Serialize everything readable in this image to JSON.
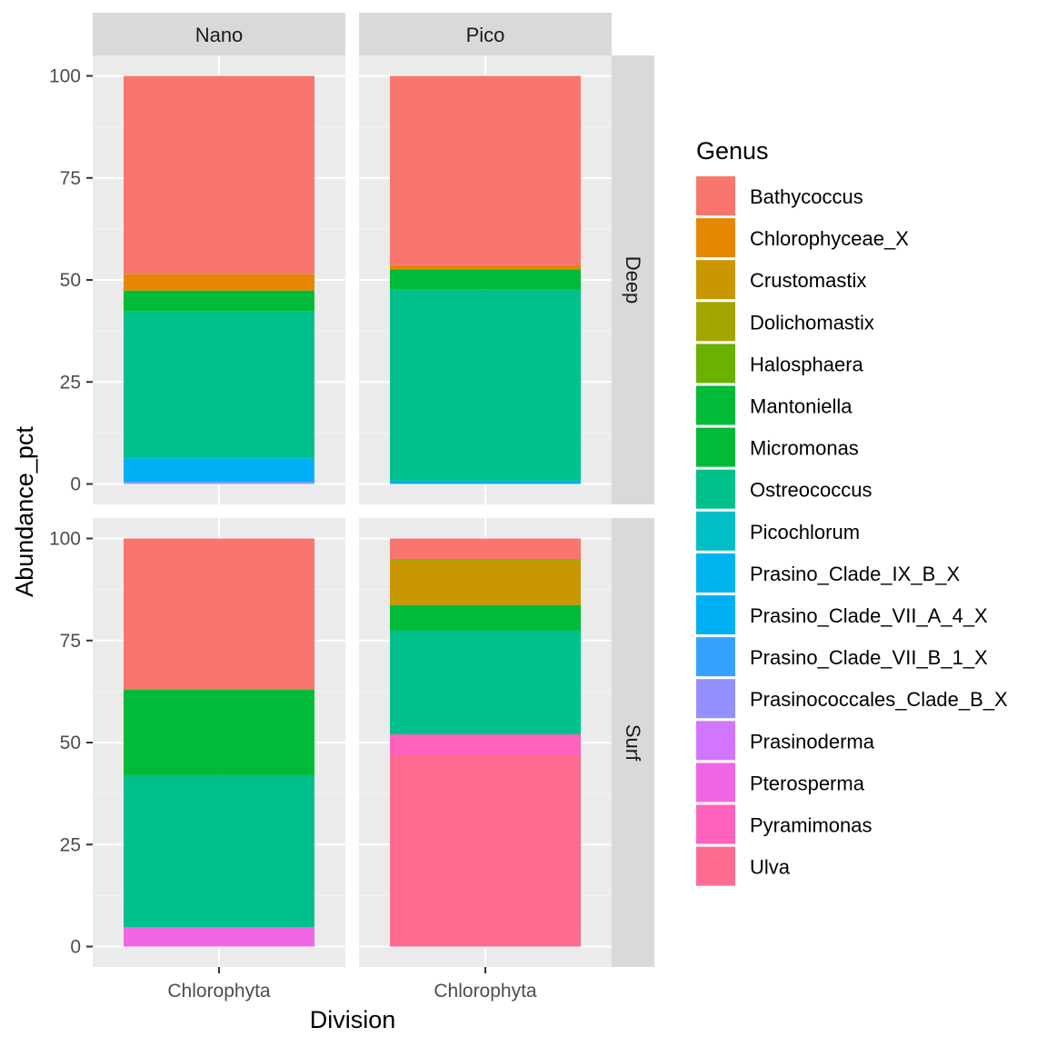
{
  "chart_data": {
    "type": "bar",
    "stacked": true,
    "facet_cols": [
      "Nano",
      "Pico"
    ],
    "facet_rows": [
      "Deep",
      "Surf"
    ],
    "categories": [
      "Chlorophyta"
    ],
    "xlabel": "Division",
    "ylabel": "Abundance_pct",
    "ylim": [
      0,
      100
    ],
    "yticks": [
      "0",
      "25",
      "50",
      "75",
      "100"
    ],
    "legend_title": "Genus",
    "legend_position": "right",
    "genera": [
      {
        "name": "Bathycoccus",
        "color": "#F8766D"
      },
      {
        "name": "Chlorophyceae_X",
        "color": "#E58700"
      },
      {
        "name": "Crustomastix",
        "color": "#C99800"
      },
      {
        "name": "Dolichomastix",
        "color": "#A3A500"
      },
      {
        "name": "Halosphaera",
        "color": "#6BB100"
      },
      {
        "name": "Mantoniella",
        "color": "#00BA38"
      },
      {
        "name": "Micromonas",
        "color": "#00BF7D"
      },
      {
        "name": "Ostreococcus",
        "color": "#00C0AF"
      },
      {
        "name": "Picochlorum",
        "color": "#00BCD8"
      },
      {
        "name": "Prasino_Clade_IX_B_X",
        "color": "#00B0F6"
      },
      {
        "name": "Prasino_Clade_VII_A_4_X",
        "color": "#619CFF"
      },
      {
        "name": "Prasino_Clade_VII_B_1_X",
        "color": "#B983FF"
      },
      {
        "name": "Prasinococcales_Clade_B_X",
        "color": "#E76BF3"
      },
      {
        "name": "Prasinoderma",
        "color": "#FD61D1"
      },
      {
        "name": "Pterosperma",
        "color": "#FF67A4"
      },
      {
        "name": "Pyramimonas",
        "color": "#F8766D"
      },
      {
        "name": "Ulva",
        "color": "#FF6C91"
      }
    ],
    "legend_swatch_colors": [
      "#F8766D",
      "#E58700",
      "#C99800",
      "#A3A500",
      "#6BB100",
      "#00BA38",
      "#00BA38",
      "#00C08B",
      "#00BFC4",
      "#00B4F0",
      "#00B0F6",
      "#35A2FF",
      "#9590FF",
      "#D376FF",
      "#F265E7",
      "#FF62BC",
      "#FF6C91"
    ],
    "panels": [
      {
        "col": "Nano",
        "row": "Deep",
        "segments": [
          {
            "genus": "Prasinococcales_Clade_B_X",
            "value": 0.5,
            "color": "#9590FF"
          },
          {
            "genus": "Prasino_Clade_VII_A_4_X",
            "value": 5.8,
            "color": "#00B0F6"
          },
          {
            "genus": "Ostreococcus",
            "value": 36.1,
            "color": "#00C08B"
          },
          {
            "genus": "Micromonas",
            "value": 5.0,
            "color": "#00BA38"
          },
          {
            "genus": "Chlorophyceae_X",
            "value": 4.0,
            "color": "#E58700"
          },
          {
            "genus": "Bathycoccus",
            "value": 48.6,
            "color": "#F8766D"
          }
        ]
      },
      {
        "col": "Pico",
        "row": "Deep",
        "segments": [
          {
            "genus": "Prasino_Clade_VII_A_4_X",
            "value": 0.8,
            "color": "#00B0F6"
          },
          {
            "genus": "Ostreococcus",
            "value": 46.8,
            "color": "#00C08B"
          },
          {
            "genus": "Micromonas",
            "value": 5.0,
            "color": "#00BA38"
          },
          {
            "genus": "Chlorophyceae_X",
            "value": 1.0,
            "color": "#E58700"
          },
          {
            "genus": "Bathycoccus",
            "value": 46.4,
            "color": "#F8766D"
          }
        ]
      },
      {
        "col": "Nano",
        "row": "Surf",
        "segments": [
          {
            "genus": "Pterosperma",
            "value": 4.8,
            "color": "#F265E7"
          },
          {
            "genus": "Ostreococcus",
            "value": 37.2,
            "color": "#00C08B"
          },
          {
            "genus": "Micromonas",
            "value": 21.0,
            "color": "#00BA38"
          },
          {
            "genus": "Bathycoccus",
            "value": 37.0,
            "color": "#F8766D"
          }
        ]
      },
      {
        "col": "Pico",
        "row": "Surf",
        "segments": [
          {
            "genus": "Ulva",
            "value": 47.0,
            "color": "#FF6C91"
          },
          {
            "genus": "Pyramimonas",
            "value": 5.0,
            "color": "#FF62BC"
          },
          {
            "genus": "Ostreococcus",
            "value": 25.5,
            "color": "#00C08B"
          },
          {
            "genus": "Micromonas",
            "value": 6.2,
            "color": "#00BA38"
          },
          {
            "genus": "Crustomastix",
            "value": 10.5,
            "color": "#C99800"
          },
          {
            "genus": "Dolichomastix",
            "value": 0.8,
            "color": "#A3A500"
          },
          {
            "genus": "Bathycoccus",
            "value": 5.0,
            "color": "#F8766D"
          }
        ]
      }
    ]
  }
}
